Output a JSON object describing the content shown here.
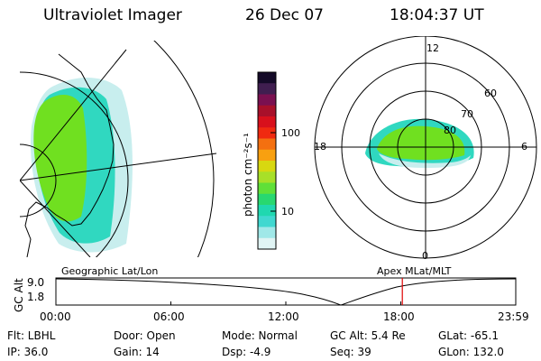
{
  "header": {
    "instrument": "Ultraviolet Imager",
    "date": "26 Dec 07",
    "time": "18:04:37 UT"
  },
  "colorbar": {
    "unit_label": "photon cm⁻²s⁻¹",
    "tick_labels": [
      "100",
      "10"
    ],
    "colors_top_to_bottom": [
      "#140a28",
      "#401e50",
      "#7a1050",
      "#a8102a",
      "#d8101c",
      "#f02a10",
      "#f47010",
      "#f8a010",
      "#d8d810",
      "#a8e028",
      "#60e038",
      "#28d870",
      "#20d8b0",
      "#40d8d0",
      "#a0e8e8",
      "#e0f4f4"
    ]
  },
  "maps": {
    "geographic_label": "Geographic Lat/Lon",
    "apex_label": "Apex  MLat/MLT",
    "mlt_labels": {
      "top": "12",
      "left": "18",
      "right": "6",
      "bottom": "0"
    },
    "mlat_labels": [
      "60",
      "70",
      "80"
    ],
    "aurora_colors": {
      "main": "#70e020",
      "secondary": "#30d8c0",
      "faint": "#c8eeee"
    }
  },
  "timeline": {
    "axis_label": "GC Alt",
    "y_ticks": [
      "9.0",
      "1.8"
    ],
    "x_ticks": [
      "00:00",
      "06:00",
      "12:00",
      "18:00",
      "23:59"
    ],
    "current_time_marker_color": "#e00000",
    "current_time_hours": 18.08
  },
  "info": {
    "filter": "Flt: LBHL",
    "ip": "IP: 36.0",
    "door": "Door: Open",
    "gain": "Gain: 14",
    "mode": "Mode: Normal",
    "dsp": "Dsp:    -4.9",
    "gc_alt": "GC Alt: 5.4 Re",
    "seq": "Seq: 39",
    "glat": "GLat:  -65.1",
    "glon": "GLon: 132.0"
  }
}
